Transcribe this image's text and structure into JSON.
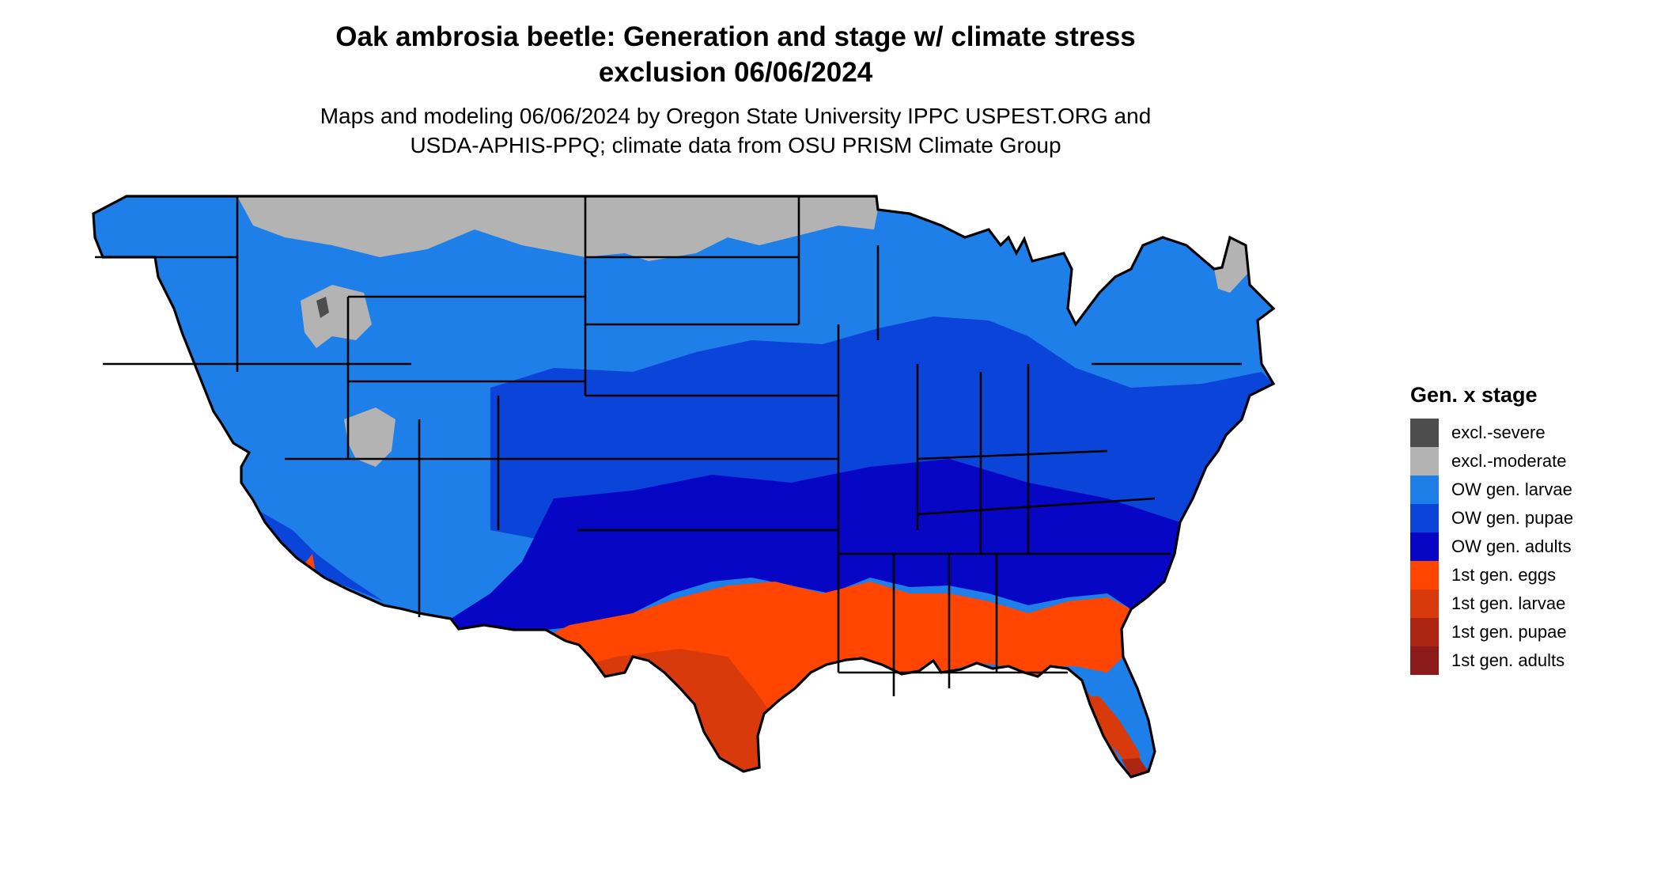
{
  "title": {
    "line1": "Oak ambrosia beetle: Generation and stage w/ climate stress",
    "line2": "exclusion 06/06/2024"
  },
  "subtitle": {
    "line1": "Maps and modeling 06/06/2024 by Oregon State University IPPC USPEST.ORG and",
    "line2": "USDA-APHIS-PPQ; climate data from OSU PRISM Climate Group"
  },
  "legend": {
    "title": "Gen. x stage",
    "items": [
      {
        "label": "excl.-severe",
        "color": "#4d4d4d"
      },
      {
        "label": "excl.-moderate",
        "color": "#b3b3b3"
      },
      {
        "label": "OW gen. larvae",
        "color": "#1f7fe8"
      },
      {
        "label": "OW gen. pupae",
        "color": "#0a44d8"
      },
      {
        "label": "OW gen. adults",
        "color": "#0606c4"
      },
      {
        "label": "1st gen. eggs",
        "color": "#ff4500"
      },
      {
        "label": "1st gen. larvae",
        "color": "#d93a0c"
      },
      {
        "label": "1st gen. pupae",
        "color": "#ad2613"
      },
      {
        "label": "1st gen. adults",
        "color": "#8b1a1a"
      }
    ]
  },
  "map": {
    "region": "contiguous United States",
    "date": "06/06/2024",
    "state_borders_color": "#000000"
  }
}
